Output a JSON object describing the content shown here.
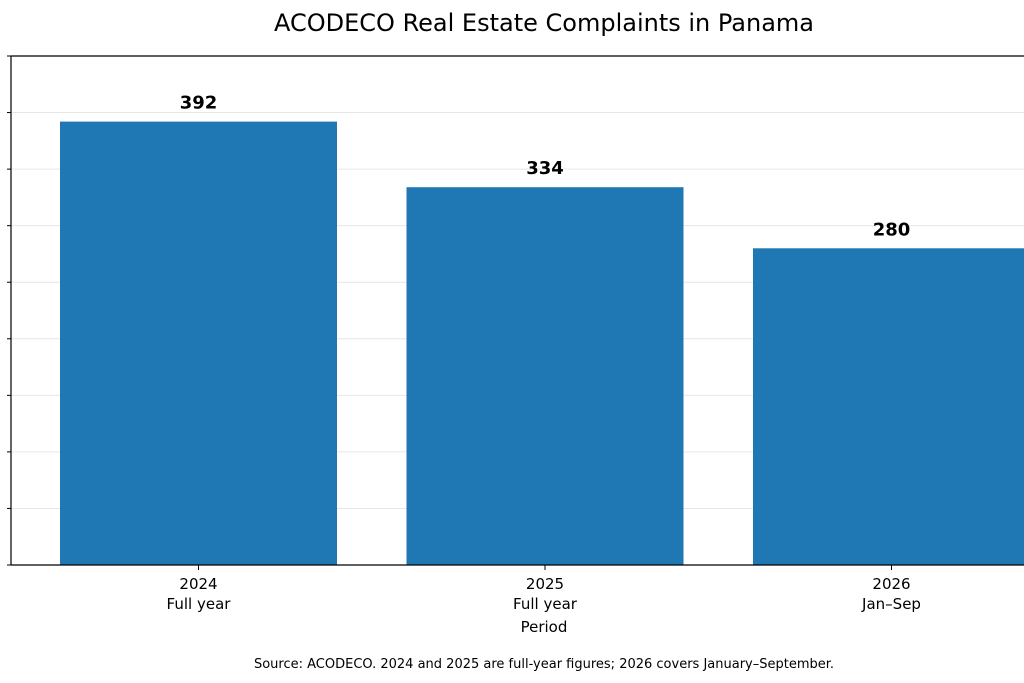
{
  "chart_data": {
    "type": "bar",
    "title": "ACODECO Real Estate Complaints in Panama",
    "xlabel": "Period",
    "ylabel": "",
    "categories": [
      [
        "2024",
        "Full year"
      ],
      [
        "2025",
        "Full year"
      ],
      [
        "2026",
        "Jan–Sep"
      ]
    ],
    "values": [
      392,
      334,
      280
    ],
    "data_labels": [
      "392",
      "334",
      "280"
    ],
    "ylim": [
      0,
      450
    ],
    "grid": true,
    "legend": "none",
    "colors": {
      "bar": "#1f77b4",
      "grid": "#e6e6e6",
      "axis": "#000000"
    }
  },
  "footer": {
    "source_note": "Source: ACODECO. 2024 and 2025 are full-year figures; 2026 covers January–September."
  }
}
